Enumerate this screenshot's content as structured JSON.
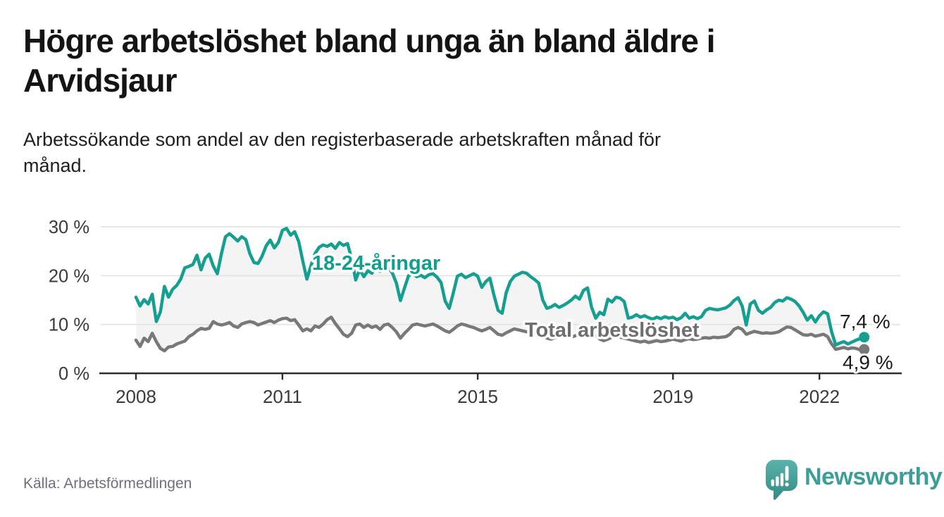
{
  "header": {
    "title": "Högre arbetslöshet bland unga än bland äldre i Arvidsjaur",
    "title_lines": [
      "Högre arbetslöshet bland unga än bland äldre i",
      "Arvidsjaur"
    ],
    "subtitle": "Arbetssökande som andel av den registerbaserade arbetskraften månad för månad.",
    "subtitle_lines": [
      "Arbetssökande som andel av den registerbaserade arbetskraften månad för",
      "månad."
    ]
  },
  "chart_data": {
    "type": "line",
    "title": "Högre arbetslöshet bland unga än bland äldre i Arvidsjaur",
    "subtitle": "Arbetssökande som andel av den registerbaserade arbetskraften månad för månad.",
    "unit": "%",
    "grid": true,
    "x_axis": {
      "start_year": 2008,
      "frequency": "monthly",
      "tick_years": [
        2008,
        2011,
        2015,
        2019,
        2022
      ]
    },
    "y_axis": {
      "ticks": [
        0,
        10,
        20,
        30
      ],
      "tick_labels": [
        "0 %",
        "10 %",
        "20 %",
        "30 %"
      ],
      "range": [
        0,
        31
      ]
    },
    "series": [
      {
        "name": "18-24-åringar",
        "slug": "18-24-aringar",
        "color": "#149f90",
        "label_color": "#0f9e8f",
        "end_label": "7,4 %",
        "end_value": 7.4,
        "values": [
          15.6,
          13.8,
          15.1,
          14.2,
          16.2,
          10.6,
          12.6,
          17.8,
          15.6,
          17.2,
          18.0,
          19.3,
          21.6,
          21.9,
          22.3,
          24.2,
          21.2,
          23.6,
          24.4,
          22.0,
          20.4,
          24.5,
          28.0,
          28.6,
          27.9,
          27.1,
          28.0,
          27.4,
          24.5,
          22.7,
          22.5,
          24.0,
          26.1,
          27.3,
          25.7,
          26.8,
          29.3,
          29.7,
          28.3,
          29.0,
          27.0,
          23.0,
          19.3,
          22.0,
          24.5,
          25.8,
          26.3,
          26.0,
          26.5,
          25.6,
          26.8,
          26.2,
          26.6,
          23.5,
          19.1,
          21.3,
          19.8,
          21.0,
          20.5,
          21.8,
          20.9,
          21.3,
          21.6,
          20.6,
          18.5,
          14.9,
          17.5,
          20.0,
          20.4,
          19.8,
          20.1,
          19.6,
          20.2,
          20.4,
          19.7,
          18.6,
          14.8,
          13.3,
          16.5,
          19.9,
          20.3,
          19.6,
          20.0,
          20.4,
          19.9,
          17.6,
          18.8,
          19.5,
          16.0,
          12.9,
          12.3,
          16.5,
          18.8,
          19.9,
          20.3,
          20.7,
          20.5,
          19.8,
          19.2,
          18.5,
          15.0,
          13.3,
          13.6,
          14.1,
          13.5,
          13.9,
          14.4,
          15.0,
          15.8,
          15.2,
          17.0,
          17.5,
          13.5,
          11.3,
          12.5,
          12.0,
          15.2,
          14.6,
          15.6,
          15.4,
          14.7,
          11.3,
          11.5,
          12.0,
          11.5,
          11.8,
          11.4,
          11.1,
          11.5,
          11.2,
          11.6,
          11.3,
          11.5,
          11.0,
          11.4,
          12.3,
          11.3,
          11.6,
          11.2,
          11.6,
          12.9,
          13.3,
          13.1,
          13.0,
          13.2,
          13.4,
          14.0,
          14.9,
          15.5,
          13.8,
          9.9,
          14.2,
          14.8,
          12.9,
          12.3,
          13.0,
          13.5,
          14.5,
          15.0,
          14.8,
          15.5,
          15.2,
          14.7,
          13.8,
          12.5,
          10.9,
          11.8,
          10.5,
          11.8,
          12.6,
          12.2,
          8.5,
          5.8,
          6.2,
          6.5,
          6.0,
          6.4,
          6.8,
          7.1,
          7.4
        ]
      },
      {
        "name": "Total arbetslöshet",
        "slug": "total-arbetsloshet",
        "color": "#787878",
        "label_color": "#6e6e6e",
        "end_label": "4,9 %",
        "end_value": 4.9,
        "values": [
          6.8,
          5.5,
          7.2,
          6.5,
          8.2,
          6.5,
          5.1,
          4.6,
          5.4,
          5.5,
          6.0,
          6.3,
          6.6,
          7.5,
          8.0,
          8.7,
          9.2,
          9.0,
          9.2,
          10.6,
          10.1,
          9.9,
          10.1,
          10.4,
          9.7,
          9.4,
          10.1,
          10.4,
          10.6,
          10.4,
          9.9,
          10.2,
          10.5,
          10.8,
          10.4,
          10.9,
          11.2,
          11.3,
          10.8,
          11.0,
          9.9,
          8.7,
          9.1,
          8.7,
          9.7,
          9.4,
          10.1,
          11.0,
          11.5,
          10.2,
          9.1,
          8.0,
          7.5,
          8.2,
          9.9,
          10.1,
          9.4,
          9.9,
          9.4,
          9.7,
          9.0,
          9.9,
          10.1,
          9.4,
          8.5,
          7.2,
          8.2,
          9.0,
          9.9,
          10.1,
          9.9,
          9.7,
          9.9,
          10.1,
          9.7,
          9.2,
          8.7,
          8.4,
          9.0,
          9.7,
          10.1,
          9.9,
          9.6,
          9.4,
          9.0,
          8.7,
          9.0,
          9.4,
          8.7,
          8.0,
          7.8,
          8.3,
          8.7,
          9.1,
          8.9,
          8.7,
          8.5,
          8.7,
          8.9,
          8.5,
          7.8,
          7.2,
          7.0,
          7.3,
          7.6,
          7.8,
          7.6,
          7.4,
          7.7,
          7.9,
          7.6,
          7.8,
          8.0,
          7.8,
          7.0,
          6.7,
          7.0,
          7.4,
          7.6,
          7.4,
          7.2,
          7.0,
          6.8,
          6.6,
          6.4,
          6.6,
          6.3,
          6.5,
          6.7,
          6.5,
          6.6,
          6.8,
          7.0,
          6.8,
          6.6,
          6.9,
          7.1,
          6.9,
          7.0,
          7.2,
          7.3,
          7.2,
          7.4,
          7.3,
          7.4,
          7.5,
          8.0,
          9.0,
          9.4,
          9.0,
          8.0,
          8.3,
          8.6,
          8.4,
          8.2,
          8.3,
          8.2,
          8.3,
          8.5,
          9.0,
          9.5,
          9.4,
          8.9,
          8.4,
          7.9,
          7.8,
          8.0,
          7.6,
          7.8,
          8.0,
          7.5,
          6.0,
          4.9,
          5.1,
          5.3,
          5.0,
          5.2,
          5.1,
          4.8,
          4.9
        ]
      }
    ],
    "colors": {
      "area_fill": "#f4f4f4",
      "gridline": "#e2e2e2",
      "axis": "#2d2d2d",
      "tick_text": "#3a3a3a",
      "value_label": "#1b1b1b"
    },
    "legend_position": "inline-labels"
  },
  "footer": {
    "source": "Källa: Arbetsförmedlingen",
    "brand": "Newsworthy",
    "brand_color": "#3d9e99"
  }
}
